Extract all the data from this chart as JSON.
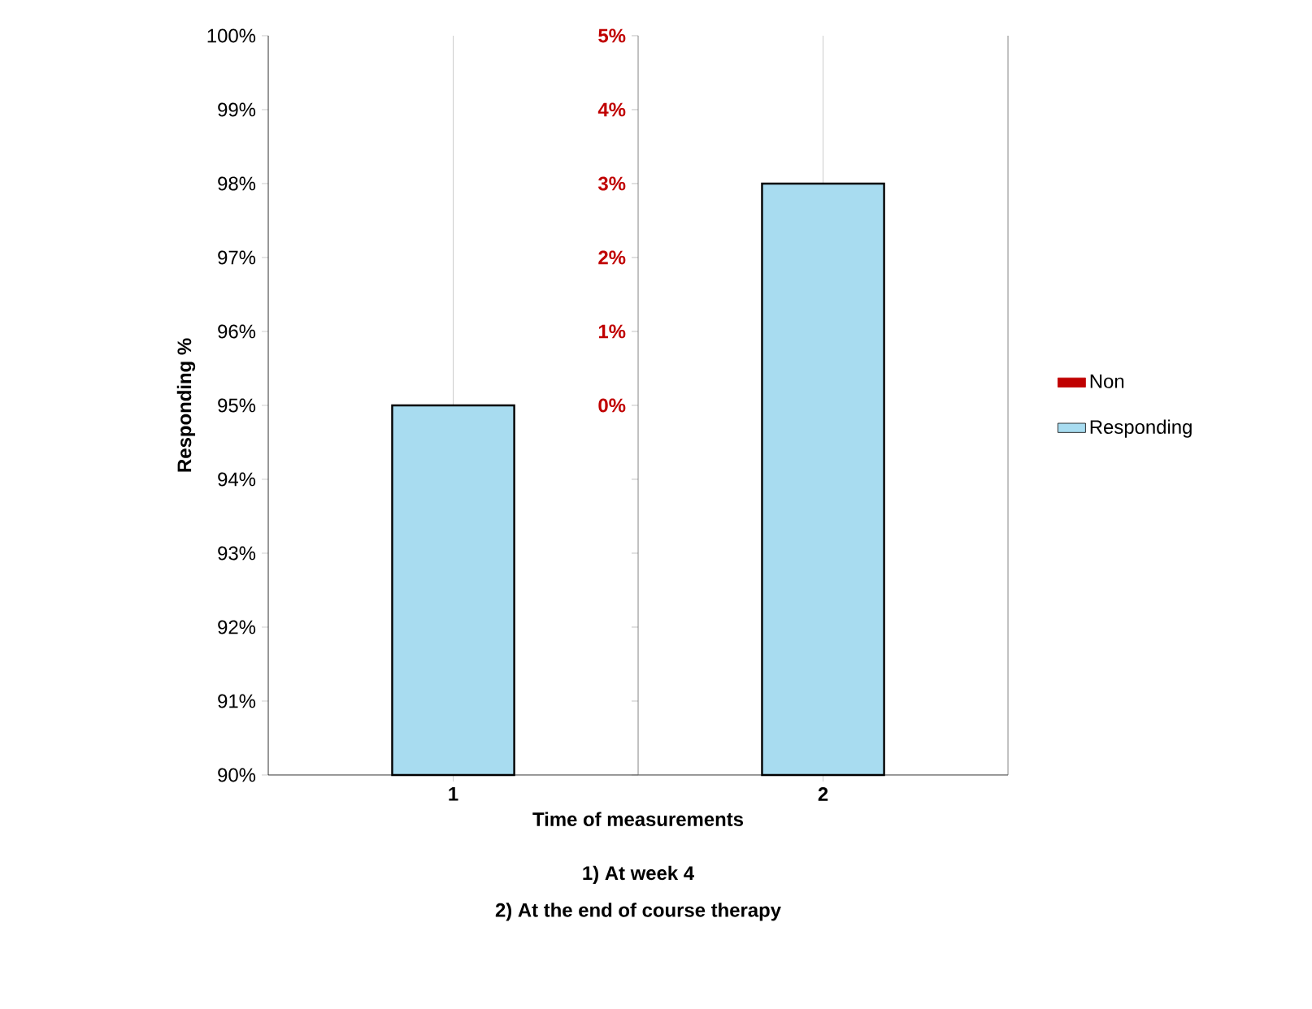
{
  "chart_data": {
    "type": "bar",
    "xlabel": "Time of measurements",
    "ylabel": "Responding %",
    "categories": [
      "1",
      "2"
    ],
    "series": [
      {
        "name": "Non",
        "color": "#c00000",
        "axis": "y2",
        "values": [
          null,
          null
        ]
      },
      {
        "name": "Responding",
        "color": "#a8dcf0",
        "values": [
          95,
          98
        ]
      }
    ],
    "ylim": [
      90,
      100
    ],
    "yticks": [
      {
        "value": 90,
        "label": "90%"
      },
      {
        "value": 91,
        "label": "91%"
      },
      {
        "value": 92,
        "label": "92%"
      },
      {
        "value": 93,
        "label": "93%"
      },
      {
        "value": 94,
        "label": "94%"
      },
      {
        "value": 95,
        "label": "95%"
      },
      {
        "value": 96,
        "label": "96%"
      },
      {
        "value": 97,
        "label": "97%"
      },
      {
        "value": 98,
        "label": "98%"
      },
      {
        "value": 99,
        "label": "99%"
      },
      {
        "value": 100,
        "label": "100%"
      }
    ],
    "y2lim": [
      -5,
      5
    ],
    "y2ticks": [
      {
        "value": -5,
        "label": null
      },
      {
        "value": -4,
        "label": null
      },
      {
        "value": -3,
        "label": null
      },
      {
        "value": -2,
        "label": null
      },
      {
        "value": -1,
        "label": null
      },
      {
        "value": 0,
        "label": "0%"
      },
      {
        "value": 1,
        "label": "1%"
      },
      {
        "value": 2,
        "label": "2%"
      },
      {
        "value": 3,
        "label": "3%"
      },
      {
        "value": 4,
        "label": "4%"
      },
      {
        "value": 5,
        "label": "5%"
      }
    ],
    "grid": "x",
    "legend": "right",
    "annotations": [
      "1) At week 4",
      "2) At the end of course therapy"
    ]
  }
}
